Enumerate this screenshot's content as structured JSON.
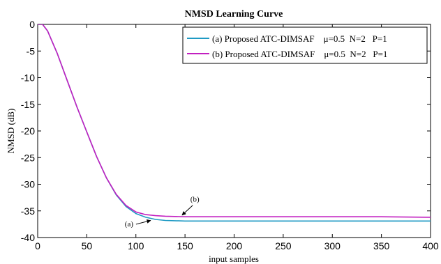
{
  "chart_data": {
    "type": "line",
    "title": "NMSD Learning Curve",
    "xlabel": "input samples",
    "ylabel": "NMSD (dB)",
    "xlim": [
      0,
      400
    ],
    "ylim": [
      -40,
      0
    ],
    "xticks": [
      0,
      50,
      100,
      150,
      200,
      250,
      300,
      350,
      400
    ],
    "yticks": [
      0,
      -5,
      -10,
      -15,
      -20,
      -25,
      -30,
      -35,
      -40
    ],
    "xtick_labels": [
      "0",
      "50",
      "100",
      "150",
      "200",
      "250",
      "300",
      "350",
      "400"
    ],
    "ytick_labels": [
      "0",
      "-5",
      "-10",
      "-15",
      "-20",
      "-25",
      "-30",
      "-35",
      "-40"
    ],
    "grid": false,
    "legend_position": "top-right",
    "series": [
      {
        "name": "(a) Proposed ATC-DIMSAF    μ=0.5  N=2   P=1",
        "color": "#1f9ac4",
        "x": [
          0,
          5,
          10,
          20,
          30,
          40,
          50,
          60,
          70,
          80,
          90,
          100,
          110,
          120,
          130,
          150,
          200,
          250,
          300,
          350,
          400
        ],
        "y": [
          0,
          0,
          -1.2,
          -5.5,
          -10.5,
          -15.5,
          -20.2,
          -24.8,
          -28.8,
          -32.0,
          -34.2,
          -35.5,
          -36.2,
          -36.6,
          -36.8,
          -36.9,
          -36.9,
          -36.9,
          -36.9,
          -36.9,
          -36.9
        ]
      },
      {
        "name": "(b) Proposed ATC-DIMSAF    μ=0.5  N=2   P=1",
        "color": "#c21fc0",
        "x": [
          0,
          5,
          10,
          20,
          30,
          40,
          50,
          60,
          70,
          80,
          90,
          100,
          110,
          120,
          130,
          150,
          200,
          250,
          300,
          350,
          400
        ],
        "y": [
          0,
          0,
          -1.2,
          -5.5,
          -10.5,
          -15.5,
          -20.2,
          -24.8,
          -28.8,
          -31.9,
          -34.0,
          -35.2,
          -35.7,
          -35.9,
          -36.0,
          -36.1,
          -36.1,
          -36.1,
          -36.1,
          -36.1,
          -36.2
        ]
      }
    ],
    "annotations": [
      {
        "text": "(a)",
        "arrow_to_x": 115,
        "arrow_to_y": -36.8,
        "label_x": 93,
        "label_y": -37.9
      },
      {
        "text": "(b)",
        "arrow_to_x": 147,
        "arrow_to_y": -35.8,
        "label_x": 160,
        "label_y": -33.3
      }
    ]
  }
}
